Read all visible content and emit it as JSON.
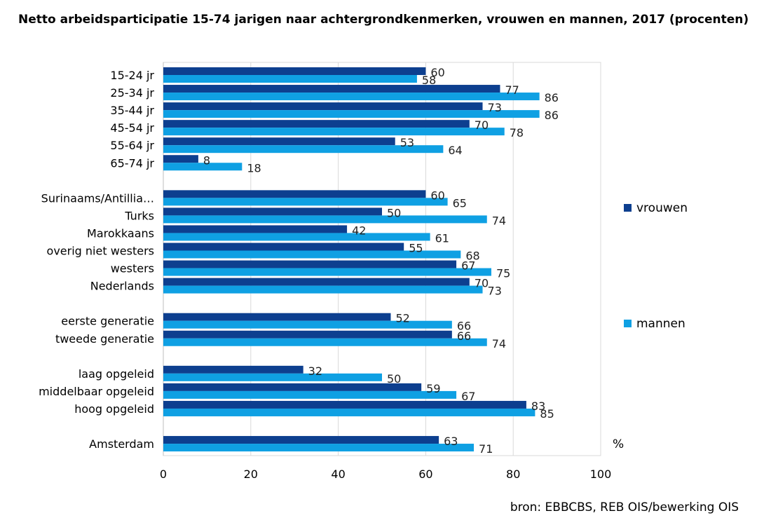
{
  "chart_data": {
    "type": "bar",
    "orientation": "horizontal",
    "title": "Netto arbeidsparticipatie 15-74 jarigen naar achtergrondkenmerken, vrouwen en mannen, 2017 (procenten)",
    "xlabel": "",
    "ylabel": "",
    "unit_label": "%",
    "xlim": [
      0,
      100
    ],
    "x_ticks": [
      0,
      20,
      40,
      60,
      80,
      100
    ],
    "grid": true,
    "legend_position": "right",
    "categories": [
      "15-24 jr",
      "25-34 jr",
      "35-44 jr",
      "45-54 jr",
      "55-64 jr",
      "65-74 jr",
      "",
      "Surinaams/Antillia…",
      "Turks",
      "Marokkaans",
      "overig niet westers",
      "westers",
      "Nederlands",
      "",
      "eerste generatie",
      "tweede generatie",
      "",
      "laag opgeleid",
      "middelbaar opgeleid",
      "hoog opgeleid",
      "",
      "Amsterdam"
    ],
    "series": [
      {
        "name": "vrouwen",
        "color": "#0d3f8f",
        "values": [
          60,
          77,
          73,
          70,
          53,
          8,
          null,
          60,
          50,
          42,
          55,
          67,
          70,
          null,
          52,
          66,
          null,
          32,
          59,
          83,
          null,
          63
        ]
      },
      {
        "name": "mannen",
        "color": "#0fa0e3",
        "values": [
          58,
          86,
          86,
          78,
          64,
          18,
          null,
          65,
          74,
          61,
          68,
          75,
          73,
          null,
          66,
          74,
          null,
          50,
          67,
          85,
          null,
          71
        ]
      }
    ],
    "source": "bron: EBBCBS, REB OIS/bewerking OIS"
  }
}
